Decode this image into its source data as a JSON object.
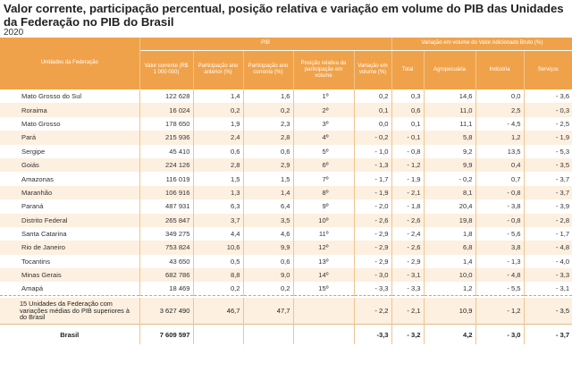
{
  "title": "Valor corrente, participação percentual, posição relativa e variação em volume do PIB das Unidades da Federação no PIB do Brasil",
  "year": "2020",
  "header": {
    "unit_col": "Unidades da Federação",
    "group_pib": "PIB",
    "group_var": "Variação em volume do Valor Adicionado Bruto (%)",
    "cols": [
      "Valor corrente (R$ 1 000 000)",
      "Participação ano anterior (%)",
      "Participação ano corrente (%)",
      "Posição relativa da participação em volume",
      "Variação em volume (%)",
      "Total",
      "Agropecuária",
      "Indústria",
      "Serviços"
    ]
  },
  "rows": [
    {
      "uf": "Mato Grosso do Sul",
      "valor": "122 628",
      "part_ant": "1,4",
      "part_cor": "1,6",
      "pos": "1º",
      "var": "0,2",
      "total": "0,3",
      "agro": "14,6",
      "ind": "0,0",
      "serv": "- 3,6"
    },
    {
      "uf": "Roraima",
      "valor": "16 024",
      "part_ant": "0,2",
      "part_cor": "0,2",
      "pos": "2º",
      "var": "0,1",
      "total": "0,6",
      "agro": "11,0",
      "ind": "2,5",
      "serv": "- 0,3"
    },
    {
      "uf": "Mato Grosso",
      "valor": "178 650",
      "part_ant": "1,9",
      "part_cor": "2,3",
      "pos": "3º",
      "var": "0,0",
      "total": "0,1",
      "agro": "11,1",
      "ind": "- 4,5",
      "serv": "- 2,5"
    },
    {
      "uf": "Pará",
      "valor": "215 936",
      "part_ant": "2,4",
      "part_cor": "2,8",
      "pos": "4º",
      "var": "- 0,2",
      "total": "- 0,1",
      "agro": "5,8",
      "ind": "1,2",
      "serv": "- 1,9"
    },
    {
      "uf": "Sergipe",
      "valor": "45 410",
      "part_ant": "0,6",
      "part_cor": "0,6",
      "pos": "5º",
      "var": "- 1,0",
      "total": "- 0,8",
      "agro": "9,2",
      "ind": "13,5",
      "serv": "- 5,3"
    },
    {
      "uf": "Goiás",
      "valor": "224 126",
      "part_ant": "2,8",
      "part_cor": "2,9",
      "pos": "6º",
      "var": "- 1,3",
      "total": "- 1,2",
      "agro": "9,9",
      "ind": "0,4",
      "serv": "- 3,5"
    },
    {
      "uf": "Amazonas",
      "valor": "116 019",
      "part_ant": "1,5",
      "part_cor": "1,5",
      "pos": "7º",
      "var": "- 1,7",
      "total": "- 1,9",
      "agro": "- 0,2",
      "ind": "0,7",
      "serv": "- 3,7"
    },
    {
      "uf": "Maranhão",
      "valor": "106 916",
      "part_ant": "1,3",
      "part_cor": "1,4",
      "pos": "8º",
      "var": "- 1,9",
      "total": "- 2,1",
      "agro": "8,1",
      "ind": "- 0,8",
      "serv": "- 3,7"
    },
    {
      "uf": "Paraná",
      "valor": "487 931",
      "part_ant": "6,3",
      "part_cor": "6,4",
      "pos": "9º",
      "var": "- 2,0",
      "total": "- 1,8",
      "agro": "20,4",
      "ind": "- 3,8",
      "serv": "- 3,9"
    },
    {
      "uf": "Distrito Federal",
      "valor": "265 847",
      "part_ant": "3,7",
      "part_cor": "3,5",
      "pos": "10º",
      "var": "- 2,6",
      "total": "- 2,6",
      "agro": "19,8",
      "ind": "- 0,8",
      "serv": "- 2,8"
    },
    {
      "uf": "Santa Catarina",
      "valor": "349 275",
      "part_ant": "4,4",
      "part_cor": "4,6",
      "pos": "11º",
      "var": "- 2,9",
      "total": "- 2,4",
      "agro": "1,8",
      "ind": "- 5,6",
      "serv": "- 1,7"
    },
    {
      "uf": "Rio de Janeiro",
      "valor": "753 824",
      "part_ant": "10,6",
      "part_cor": "9,9",
      "pos": "12º",
      "var": "- 2,9",
      "total": "- 2,6",
      "agro": "6,8",
      "ind": "3,8",
      "serv": "- 4,8"
    },
    {
      "uf": "Tocantins",
      "valor": "43 650",
      "part_ant": "0,5",
      "part_cor": "0,6",
      "pos": "13º",
      "var": "- 2,9",
      "total": "- 2,9",
      "agro": "1,4",
      "ind": "- 1,3",
      "serv": "- 4,0"
    },
    {
      "uf": "Minas Gerais",
      "valor": "682 786",
      "part_ant": "8,8",
      "part_cor": "9,0",
      "pos": "14º",
      "var": "- 3,0",
      "total": "- 3,1",
      "agro": "10,0",
      "ind": "- 4,8",
      "serv": "- 3,3"
    },
    {
      "uf": "Amapá",
      "valor": "18 469",
      "part_ant": "0,2",
      "part_cor": "0,2",
      "pos": "15º",
      "var": "- 3,3",
      "total": "- 3,3",
      "agro": "1,2",
      "ind": "- 5,5",
      "serv": "- 3,1"
    }
  ],
  "summary": {
    "uf": "15 Unidades da Federação com variações médias do PIB superiores à do Brasil",
    "valor": "3 627 490",
    "part_ant": "46,7",
    "part_cor": "47,7",
    "pos": "",
    "var": "- 2,2",
    "total": "- 2,1",
    "agro": "10,9",
    "ind": "- 1,2",
    "serv": "- 3,5"
  },
  "total": {
    "uf": "Brasil",
    "valor": "7 609 597",
    "part_ant": "",
    "part_cor": "",
    "pos": "",
    "var": "-3,3",
    "total": "- 3,2",
    "agro": "4,2",
    "ind": "- 3,0",
    "serv": "- 3,7"
  },
  "colors": {
    "header_bg": "#f0a24a",
    "row_alt_bg": "#fdf0e0",
    "text": "#222222"
  }
}
